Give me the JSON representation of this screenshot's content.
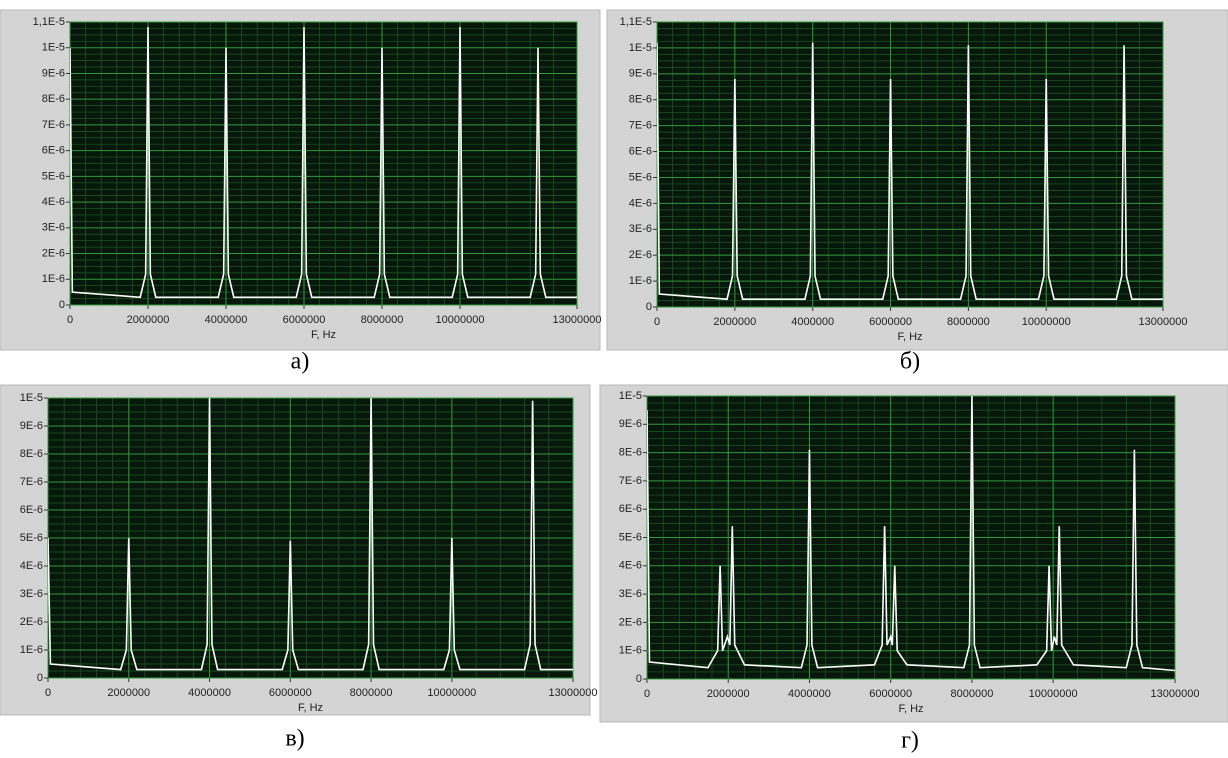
{
  "chart_data": [
    {
      "type": "line",
      "caption": "а)",
      "xlabel": "F, Hz",
      "color": "#ffffff",
      "grid": true,
      "xlim": [
        0,
        13000000
      ],
      "xticks": [
        0,
        2000000,
        4000000,
        6000000,
        8000000,
        10000000,
        13000000
      ],
      "ylim": [
        0,
        1.1e-05
      ],
      "yticks": [
        0,
        {
          "value": 1e-06,
          "label": "1E-6"
        },
        {
          "value": 2e-06,
          "label": "2E-6"
        },
        {
          "value": 3e-06,
          "label": "3E-6"
        },
        {
          "value": 4e-06,
          "label": "4E-6"
        },
        {
          "value": 5e-06,
          "label": "5E-6"
        },
        {
          "value": 6e-06,
          "label": "6E-6"
        },
        {
          "value": 7e-06,
          "label": "7E-6"
        },
        {
          "value": 8e-06,
          "label": "8E-6"
        },
        {
          "value": 9e-06,
          "label": "9E-6"
        },
        {
          "value": 1e-05,
          "label": "1E-5"
        },
        {
          "value": 1.1e-05,
          "label": "1,1E-5"
        }
      ],
      "x": [
        0,
        60000,
        1800000,
        1940000,
        2000000,
        2060000,
        2200000,
        3800000,
        3940000,
        4000000,
        4060000,
        4200000,
        5800000,
        5940000,
        6000000,
        6060000,
        6200000,
        7800000,
        7940000,
        8000000,
        8060000,
        8200000,
        9800000,
        9940000,
        10000000,
        10060000,
        10200000,
        11800000,
        11940000,
        12000000,
        12060000,
        12200000,
        13000000
      ],
      "values": [
        1e-05,
        5e-07,
        3e-07,
        1.2e-06,
        1.08e-05,
        1.2e-06,
        3e-07,
        3e-07,
        1.2e-06,
        1e-05,
        1.2e-06,
        3e-07,
        3e-07,
        1.2e-06,
        1.08e-05,
        1.2e-06,
        3e-07,
        3e-07,
        1.2e-06,
        1e-05,
        1.2e-06,
        3e-07,
        3e-07,
        1.2e-06,
        1.08e-05,
        1.2e-06,
        3e-07,
        3e-07,
        1.2e-06,
        1e-05,
        1.2e-06,
        3e-07,
        3e-07
      ]
    },
    {
      "type": "line",
      "caption": "б)",
      "xlabel": "F, Hz",
      "color": "#ffffff",
      "grid": true,
      "xlim": [
        0,
        13000000
      ],
      "xticks": [
        0,
        2000000,
        4000000,
        6000000,
        8000000,
        10000000,
        13000000
      ],
      "ylim": [
        0,
        1.1e-05
      ],
      "yticks": [
        0,
        {
          "value": 1e-06,
          "label": "1E-6"
        },
        {
          "value": 2e-06,
          "label": "2E-6"
        },
        {
          "value": 3e-06,
          "label": "3E-6"
        },
        {
          "value": 4e-06,
          "label": "4E-6"
        },
        {
          "value": 5e-06,
          "label": "5E-6"
        },
        {
          "value": 6e-06,
          "label": "6E-6"
        },
        {
          "value": 7e-06,
          "label": "7E-6"
        },
        {
          "value": 8e-06,
          "label": "8E-6"
        },
        {
          "value": 9e-06,
          "label": "9E-6"
        },
        {
          "value": 1e-05,
          "label": "1E-5"
        },
        {
          "value": 1.1e-05,
          "label": "1,1E-5"
        }
      ],
      "x": [
        0,
        60000,
        1800000,
        1940000,
        2000000,
        2060000,
        2200000,
        3800000,
        3940000,
        4000000,
        4060000,
        4200000,
        5800000,
        5940000,
        6000000,
        6060000,
        6200000,
        7800000,
        7940000,
        8000000,
        8060000,
        8200000,
        9800000,
        9940000,
        10000000,
        10060000,
        10200000,
        11800000,
        11940000,
        12000000,
        12060000,
        12200000,
        13000000
      ],
      "values": [
        1.02e-05,
        5e-07,
        3e-07,
        1.2e-06,
        8.8e-06,
        1.2e-06,
        3e-07,
        3e-07,
        1.2e-06,
        1.02e-05,
        1.2e-06,
        3e-07,
        3e-07,
        1.2e-06,
        8.8e-06,
        1.2e-06,
        3e-07,
        3e-07,
        1.2e-06,
        1.01e-05,
        1.2e-06,
        3e-07,
        3e-07,
        1.2e-06,
        8.8e-06,
        1.2e-06,
        3e-07,
        3e-07,
        1.2e-06,
        1.01e-05,
        1.2e-06,
        3e-07,
        3e-07
      ]
    },
    {
      "type": "line",
      "caption": "в)",
      "xlabel": "F, Hz",
      "color": "#ffffff",
      "grid": true,
      "xlim": [
        0,
        13000000
      ],
      "xticks": [
        0,
        2000000,
        4000000,
        6000000,
        8000000,
        10000000,
        13000000
      ],
      "ylim": [
        0,
        1e-05
      ],
      "yticks": [
        0,
        {
          "value": 1e-06,
          "label": "1E-6"
        },
        {
          "value": 2e-06,
          "label": "2E-6"
        },
        {
          "value": 3e-06,
          "label": "3E-6"
        },
        {
          "value": 4e-06,
          "label": "4E-6"
        },
        {
          "value": 5e-06,
          "label": "5E-6"
        },
        {
          "value": 6e-06,
          "label": "6E-6"
        },
        {
          "value": 7e-06,
          "label": "7E-6"
        },
        {
          "value": 8e-06,
          "label": "8E-6"
        },
        {
          "value": 9e-06,
          "label": "9E-6"
        },
        {
          "value": 1e-05,
          "label": "1E-5"
        }
      ],
      "x": [
        0,
        60000,
        1800000,
        1940000,
        2000000,
        2060000,
        2200000,
        3800000,
        3940000,
        4000000,
        4060000,
        4200000,
        5800000,
        5940000,
        6000000,
        6060000,
        6200000,
        7800000,
        7940000,
        8000000,
        8060000,
        8200000,
        9800000,
        9940000,
        10000000,
        10060000,
        10200000,
        11800000,
        11940000,
        12000000,
        12060000,
        12200000,
        13000000
      ],
      "values": [
        5e-06,
        5e-07,
        3e-07,
        1e-06,
        5e-06,
        1e-06,
        3e-07,
        3e-07,
        1.2e-06,
        1e-05,
        1.2e-06,
        3e-07,
        3e-07,
        1e-06,
        4.9e-06,
        1e-06,
        3e-07,
        3e-07,
        1.2e-06,
        1e-05,
        1.2e-06,
        3e-07,
        3e-07,
        1e-06,
        5e-06,
        1e-06,
        3e-07,
        3e-07,
        1.2e-06,
        9.9e-06,
        1.2e-06,
        3e-07,
        3e-07
      ]
    },
    {
      "type": "line",
      "caption": "г)",
      "xlabel": "F, Hz",
      "color": "#ffffff",
      "grid": true,
      "xlim": [
        0,
        13000000
      ],
      "xticks": [
        0,
        2000000,
        4000000,
        6000000,
        8000000,
        10000000,
        13000000
      ],
      "ylim": [
        0,
        1e-05
      ],
      "yticks": [
        0,
        {
          "value": 1e-06,
          "label": "1E-6"
        },
        {
          "value": 2e-06,
          "label": "2E-6"
        },
        {
          "value": 3e-06,
          "label": "3E-6"
        },
        {
          "value": 4e-06,
          "label": "4E-6"
        },
        {
          "value": 5e-06,
          "label": "5E-6"
        },
        {
          "value": 6e-06,
          "label": "6E-6"
        },
        {
          "value": 7e-06,
          "label": "7E-6"
        },
        {
          "value": 8e-06,
          "label": "8E-6"
        },
        {
          "value": 9e-06,
          "label": "9E-6"
        },
        {
          "value": 1e-05,
          "label": "1E-5"
        }
      ],
      "x": [
        0,
        60000,
        1500000,
        1740000,
        1800000,
        1860000,
        1980000,
        2040000,
        2100000,
        2160000,
        2400000,
        3800000,
        3940000,
        4000000,
        4060000,
        4200000,
        5600000,
        5790000,
        5850000,
        5910000,
        6000000,
        6040000,
        6100000,
        6160000,
        6400000,
        7800000,
        7940000,
        8000000,
        8060000,
        8200000,
        9600000,
        9840000,
        9900000,
        9960000,
        10030000,
        10090000,
        10150000,
        10210000,
        10500000,
        11800000,
        11940000,
        12000000,
        12060000,
        12200000,
        13000000
      ],
      "values": [
        9.5e-06,
        6e-07,
        4e-07,
        1e-06,
        4e-06,
        1e-06,
        1.5e-06,
        1.2e-06,
        5.4e-06,
        1.2e-06,
        5e-07,
        4e-07,
        1.2e-06,
        8.1e-06,
        1.2e-06,
        4e-07,
        5e-07,
        1.2e-06,
        5.4e-06,
        1.2e-06,
        1.5e-06,
        1.2e-06,
        4e-06,
        1e-06,
        5e-07,
        4e-07,
        1.2e-06,
        1e-05,
        1.2e-06,
        4e-07,
        5e-07,
        1e-06,
        4e-06,
        1e-06,
        1.5e-06,
        1.2e-06,
        5.4e-06,
        1.2e-06,
        5e-07,
        4e-07,
        1.2e-06,
        8.1e-06,
        1.2e-06,
        4e-07,
        3e-07
      ]
    }
  ]
}
